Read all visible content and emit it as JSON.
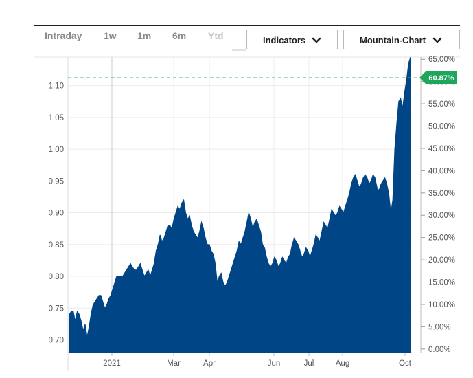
{
  "toolbar": {
    "ranges": [
      "Intraday",
      "1w",
      "1m",
      "6m",
      "Ytd"
    ],
    "disabled_range": "Ytd",
    "indicators_label": "Indicators",
    "chart_type_label": "Mountain-Chart"
  },
  "colors": {
    "area": "#004687",
    "badge": "#1fa65a",
    "dashed_line": "#3fb87a",
    "grid": "#ececec"
  },
  "icons": {
    "dropdown": "chevron-down-icon"
  },
  "chart_data": {
    "type": "area",
    "x_ticks": [
      "2021",
      "Mar",
      "Apr",
      "Jun",
      "Jul",
      "Aug",
      "Oct"
    ],
    "y_left": {
      "ticks": [
        "0.70",
        "0.75",
        "0.80",
        "0.85",
        "0.90",
        "0.95",
        "1.00",
        "1.05",
        "1.10"
      ],
      "range": [
        0.68,
        1.145
      ]
    },
    "y_right": {
      "ticks": [
        "0.00%",
        "5.00%",
        "10.00%",
        "15.00%",
        "20.00%",
        "25.00%",
        "30.00%",
        "35.00%",
        "40.00%",
        "45.00%",
        "50.00%",
        "55.00%",
        "60.00%",
        "65.00%"
      ],
      "range": [
        -0.8,
        65.5
      ]
    },
    "marker": {
      "label": "60.87%",
      "value": 60.87
    },
    "grid": true,
    "series": [
      {
        "values": [
          0.74,
          0.745,
          0.745,
          0.73,
          0.745,
          0.74,
          0.73,
          0.715,
          0.725,
          0.705,
          0.72,
          0.74,
          0.755,
          0.76,
          0.765,
          0.77,
          0.77,
          0.76,
          0.75,
          0.755,
          0.765,
          0.77,
          0.78,
          0.79,
          0.8,
          0.8,
          0.8,
          0.8,
          0.805,
          0.81,
          0.815,
          0.82,
          0.815,
          0.81,
          0.81,
          0.815,
          0.82,
          0.81,
          0.8,
          0.805,
          0.81,
          0.8,
          0.81,
          0.82,
          0.84,
          0.85,
          0.865,
          0.855,
          0.86,
          0.87,
          0.88,
          0.88,
          0.875,
          0.89,
          0.9,
          0.91,
          0.905,
          0.915,
          0.92,
          0.9,
          0.89,
          0.895,
          0.88,
          0.87,
          0.865,
          0.86,
          0.87,
          0.885,
          0.875,
          0.86,
          0.85,
          0.85,
          0.84,
          0.835,
          0.82,
          0.79,
          0.8,
          0.805,
          0.79,
          0.785,
          0.79,
          0.8,
          0.81,
          0.82,
          0.83,
          0.84,
          0.855,
          0.85,
          0.86,
          0.87,
          0.885,
          0.9,
          0.89,
          0.875,
          0.885,
          0.89,
          0.88,
          0.87,
          0.85,
          0.845,
          0.83,
          0.82,
          0.815,
          0.82,
          0.83,
          0.825,
          0.815,
          0.82,
          0.83,
          0.825,
          0.82,
          0.83,
          0.835,
          0.85,
          0.86,
          0.855,
          0.85,
          0.84,
          0.83,
          0.835,
          0.845,
          0.84,
          0.83,
          0.84,
          0.85,
          0.865,
          0.86,
          0.855,
          0.87,
          0.885,
          0.88,
          0.875,
          0.89,
          0.905,
          0.9,
          0.895,
          0.9,
          0.91,
          0.905,
          0.9,
          0.91,
          0.92,
          0.93,
          0.945,
          0.955,
          0.96,
          0.95,
          0.94,
          0.945,
          0.955,
          0.96,
          0.955,
          0.945,
          0.95,
          0.96,
          0.955,
          0.94,
          0.935,
          0.945,
          0.95,
          0.955,
          0.945,
          0.93,
          0.9,
          0.92,
          1.0,
          1.04,
          1.075,
          1.08,
          1.065,
          1.09,
          1.11,
          1.135,
          1.145
        ]
      }
    ]
  }
}
